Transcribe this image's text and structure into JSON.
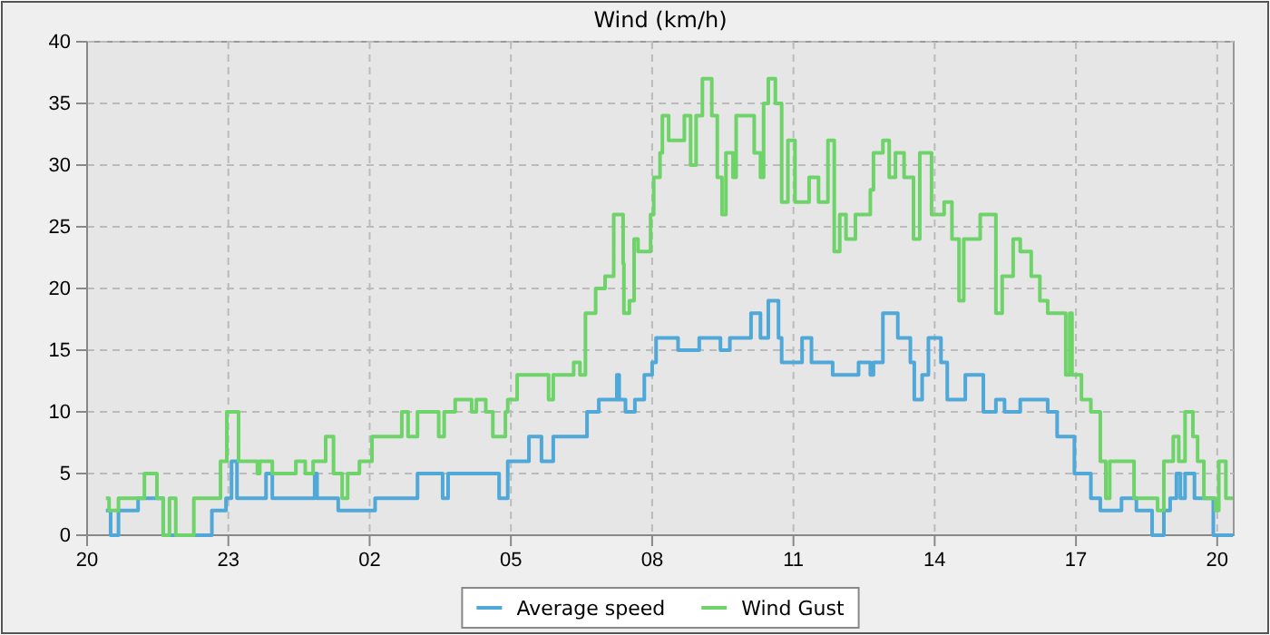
{
  "chart_data": {
    "type": "step",
    "title": "Wind (km/h)",
    "xlim": [
      "--01-01T20:00",
      "--01-02T20:21"
    ],
    "xticks": [
      {
        "value": "--01-01T20:00",
        "label": "20"
      },
      {
        "value": "--01-01T23:00",
        "label": "23"
      },
      {
        "value": "--01-02T02:00",
        "label": "02"
      },
      {
        "value": "--01-02T05:00",
        "label": "05"
      },
      {
        "value": "--01-02T08:00",
        "label": "08"
      },
      {
        "value": "--01-02T11:00",
        "label": "11"
      },
      {
        "value": "--01-02T14:00",
        "label": "14"
      },
      {
        "value": "--01-02T17:00",
        "label": "17"
      },
      {
        "value": "--01-02T20:00",
        "label": "20"
      }
    ],
    "ylim": [
      0,
      40
    ],
    "yticks": [
      0,
      5,
      10,
      15,
      20,
      25,
      30,
      35,
      40
    ],
    "grid": true,
    "legend": "bottom",
    "line_style": "solid",
    "marker": "none",
    "series": [
      {
        "name": "Average speed",
        "color": "#4fa8d8",
        "x": [
          "--01-01T20:24",
          "--01-01T20:30",
          "--01-01T20:40",
          "--01-01T21:05",
          "--01-01T21:37",
          "--01-01T22:39",
          "--01-01T22:57",
          "--01-01T23:04",
          "--01-01T23:11",
          "--01-01T23:48",
          "--01-01T23:56",
          "--01-02T00:50",
          "--01-02T00:53",
          "--01-02T01:20",
          "--01-02T02:07",
          "--01-02T03:01",
          "--01-02T03:33",
          "--01-02T03:40",
          "--01-02T04:45",
          "--01-02T04:56",
          "--01-02T05:23",
          "--01-02T05:39",
          "--01-02T05:54",
          "--01-02T06:37",
          "--01-02T06:52",
          "--01-02T07:15",
          "--01-02T07:18",
          "--01-02T07:26",
          "--01-02T07:38",
          "--01-02T07:50",
          "--01-02T08:00",
          "--01-02T08:05",
          "--01-02T08:33",
          "--01-02T09:00",
          "--01-02T09:27",
          "--01-02T09:39",
          "--01-02T10:06",
          "--01-02T10:18",
          "--01-02T10:28",
          "--01-02T10:41",
          "--01-02T10:45",
          "--01-02T11:11",
          "--01-02T11:23",
          "--01-02T11:50",
          "--01-02T12:23",
          "--01-02T12:38",
          "--01-02T12:42",
          "--01-02T12:54",
          "--01-02T13:13",
          "--01-02T13:29",
          "--01-02T13:34",
          "--01-02T13:44",
          "--01-02T13:52",
          "--01-02T14:08",
          "--01-02T14:16",
          "--01-02T14:39",
          "--01-02T15:02",
          "--01-02T15:18",
          "--01-02T15:29",
          "--01-02T15:49",
          "--01-02T16:24",
          "--01-02T16:36",
          "--01-02T16:58",
          "--01-02T17:19",
          "--01-02T17:31",
          "--01-02T17:58",
          "--01-02T18:17",
          "--01-02T18:37",
          "--01-02T18:52",
          "--01-02T19:00",
          "--01-02T19:08",
          "--01-02T19:13",
          "--01-02T19:19",
          "--01-02T19:31",
          "--01-02T19:55",
          "--01-02T20:20"
        ],
        "values": [
          2,
          0,
          2,
          3,
          0,
          2,
          3,
          6,
          3,
          5,
          3,
          5,
          3,
          2,
          3,
          5,
          3,
          5,
          3,
          6,
          8,
          6,
          8,
          10,
          11,
          13,
          11,
          10,
          11,
          13,
          14,
          16,
          15,
          16,
          15,
          16,
          18,
          16,
          19,
          16,
          14,
          16,
          14,
          13,
          14,
          13,
          14,
          18,
          16,
          14,
          11,
          13,
          16,
          14,
          11,
          13,
          10,
          11,
          10,
          11,
          10,
          8,
          5,
          3,
          2,
          3,
          2,
          0,
          2,
          3,
          5,
          3,
          5,
          3,
          0,
          0
        ]
      },
      {
        "name": "Wind Gust",
        "color": "#6ed46a",
        "x": [
          "--01-01T20:24",
          "--01-01T20:28",
          "--01-01T20:40",
          "--01-01T21:13",
          "--01-01T21:29",
          "--01-01T21:37",
          "--01-01T21:45",
          "--01-01T21:53",
          "--01-01T22:04",
          "--01-01T22:16",
          "--01-01T22:50",
          "--01-01T22:58",
          "--01-01T23:13",
          "--01-01T23:37",
          "--01-01T23:40",
          "--01-01T23:56",
          "--01-02T00:26",
          "--01-02T00:38",
          "--01-02T00:48",
          "--01-02T01:04",
          "--01-02T01:14",
          "--01-02T01:25",
          "--01-02T01:32",
          "--01-02T01:47",
          "--01-02T02:03",
          "--01-02T02:41",
          "--01-02T02:49",
          "--01-02T03:01",
          "--01-02T03:28",
          "--01-02T03:35",
          "--01-02T03:49",
          "--01-02T04:10",
          "--01-02T04:16",
          "--01-02T04:28",
          "--01-02T04:37",
          "--01-02T04:53",
          "--01-02T04:56",
          "--01-02T05:08",
          "--01-02T05:48",
          "--01-02T05:54",
          "--01-02T06:20",
          "--01-02T06:28",
          "--01-02T06:35",
          "--01-02T06:48",
          "--01-02T07:00",
          "--01-02T07:11",
          "--01-02T07:23",
          "--01-02T07:24",
          "--01-02T07:31",
          "--01-02T07:37",
          "--01-02T07:42",
          "--01-02T07:58",
          "--01-02T08:02",
          "--01-02T08:10",
          "--01-02T08:13",
          "--01-02T08:21",
          "--01-02T08:41",
          "--01-02T08:49",
          "--01-02T08:56",
          "--01-02T09:04",
          "--01-02T09:16",
          "--01-02T09:23",
          "--01-02T09:29",
          "--01-02T09:34",
          "--01-02T09:43",
          "--01-02T09:47",
          "--01-02T10:10",
          "--01-02T10:18",
          "--01-02T10:22",
          "--01-02T10:28",
          "--01-02T10:37",
          "--01-02T10:45",
          "--01-02T10:53",
          "--01-02T11:02",
          "--01-02T11:20",
          "--01-02T11:32",
          "--01-02T11:44",
          "--01-02T11:52",
          "--01-02T11:59",
          "--01-02T12:07",
          "--01-02T12:19",
          "--01-02T12:38",
          "--01-02T12:42",
          "--01-02T12:54",
          "--01-02T13:02",
          "--01-02T13:10",
          "--01-02T13:21",
          "--01-02T13:33",
          "--01-02T13:41",
          "--01-02T13:56",
          "--01-02T14:12",
          "--01-02T14:22",
          "--01-02T14:31",
          "--01-02T14:37",
          "--01-02T14:58",
          "--01-02T15:18",
          "--01-02T15:26",
          "--01-02T15:40",
          "--01-02T15:49",
          "--01-02T16:03",
          "--01-02T16:14",
          "--01-02T16:24",
          "--01-02T16:47",
          "--01-02T16:52",
          "--01-02T16:55",
          "--01-02T17:07",
          "--01-02T17:19",
          "--01-02T17:31",
          "--01-02T17:38",
          "--01-02T17:43",
          "--01-02T18:14",
          "--01-02T18:44",
          "--01-02T18:52",
          "--01-02T19:04",
          "--01-02T19:11",
          "--01-02T19:19",
          "--01-02T19:29",
          "--01-02T19:35",
          "--01-02T19:43",
          "--01-02T19:58",
          "--01-02T20:02",
          "--01-02T20:11",
          "--01-02T20:20"
        ],
        "values": [
          3,
          2,
          3,
          5,
          3,
          0,
          3,
          0,
          0,
          3,
          6,
          10,
          6,
          5,
          6,
          5,
          6,
          5,
          6,
          8,
          5,
          3,
          5,
          6,
          8,
          10,
          8,
          10,
          8,
          10,
          11,
          10,
          11,
          10,
          8,
          10,
          11,
          13,
          11,
          13,
          14,
          13,
          18,
          20,
          21,
          26,
          22,
          18,
          19,
          24,
          23,
          26,
          29,
          31,
          34,
          32,
          34,
          30,
          34,
          37,
          34,
          29,
          26,
          31,
          29,
          34,
          31,
          29,
          35,
          37,
          35,
          27,
          32,
          27,
          29,
          27,
          32,
          23,
          26,
          24,
          26,
          28,
          31,
          32,
          29,
          31,
          29,
          24,
          31,
          26,
          27,
          24,
          19,
          24,
          26,
          18,
          21,
          24,
          23,
          21,
          19,
          18,
          13,
          18,
          13,
          11,
          10,
          6,
          3,
          6,
          3,
          2,
          6,
          8,
          6,
          10,
          8,
          6,
          3,
          2,
          6,
          3,
          3
        ]
      }
    ]
  }
}
